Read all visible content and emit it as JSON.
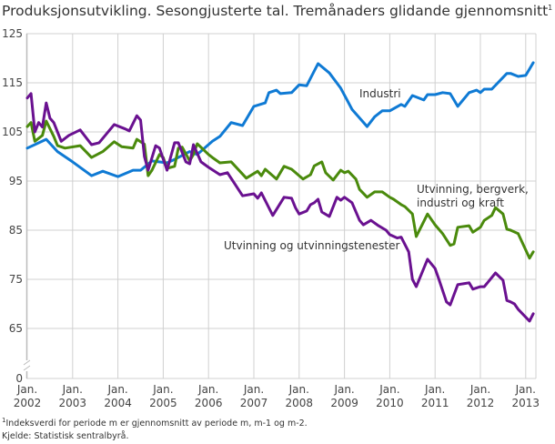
{
  "chart_data": {
    "type": "line",
    "title": "Produksjonsutvikling. Sesongjusterte tal. Tremånaders glidande gjennomsnitt",
    "title_footnote_mark": "1",
    "xlabel": "",
    "ylabel": "",
    "ylim": [
      0,
      125
    ],
    "y_axis_break": true,
    "yticks": [
      "0",
      "65",
      "75",
      "85",
      "95",
      "105",
      "115",
      "125"
    ],
    "xticks": [
      {
        "line1": "Jan.",
        "line2": "2002"
      },
      {
        "line1": "Jan.",
        "line2": "2003"
      },
      {
        "line1": "Jan.",
        "line2": "2004"
      },
      {
        "line1": "Jan.",
        "line2": "2005"
      },
      {
        "line1": "Jan.",
        "line2": "2006"
      },
      {
        "line1": "Jan.",
        "line2": "2007"
      },
      {
        "line1": "Jan.",
        "line2": "2008"
      },
      {
        "line1": "Jan.",
        "line2": "2009"
      },
      {
        "line1": "Jan.",
        "line2": "2010"
      },
      {
        "line1": "Jan.",
        "line2": "2011"
      },
      {
        "line1": "Jan.",
        "line2": "2012"
      },
      {
        "line1": "Jan.",
        "line2": "2013"
      }
    ],
    "grid": true,
    "legend": "inline labels",
    "series": [
      {
        "name": "Industri",
        "color": "#0f7ad4",
        "points": [
          [
            "2002-01",
            101.7
          ],
          [
            "2002-06",
            103.5
          ],
          [
            "2002-09",
            101.0
          ],
          [
            "2003-01",
            98.9
          ],
          [
            "2003-06",
            96.1
          ],
          [
            "2003-09",
            97.0
          ],
          [
            "2004-01",
            95.9
          ],
          [
            "2004-05",
            97.2
          ],
          [
            "2004-07",
            97.2
          ],
          [
            "2004-10",
            99.1
          ],
          [
            "2005-02",
            98.7
          ],
          [
            "2005-04",
            99.4
          ],
          [
            "2005-08",
            101.0
          ],
          [
            "2005-10",
            100.4
          ],
          [
            "2006-02",
            103.1
          ],
          [
            "2006-04",
            104.1
          ],
          [
            "2006-07",
            106.9
          ],
          [
            "2006-10",
            106.3
          ],
          [
            "2007-01",
            110.2
          ],
          [
            "2007-04",
            110.9
          ],
          [
            "2007-05",
            113.0
          ],
          [
            "2007-07",
            113.5
          ],
          [
            "2007-08",
            112.8
          ],
          [
            "2007-11",
            113.0
          ],
          [
            "2008-01",
            114.6
          ],
          [
            "2008-03",
            114.4
          ],
          [
            "2008-05",
            117.4
          ],
          [
            "2008-06",
            118.9
          ],
          [
            "2008-09",
            117.0
          ],
          [
            "2008-12",
            113.9
          ],
          [
            "2009-03",
            109.6
          ],
          [
            "2009-07",
            106.1
          ],
          [
            "2009-09",
            108.1
          ],
          [
            "2009-11",
            109.3
          ],
          [
            "2010-01",
            109.3
          ],
          [
            "2010-04",
            110.6
          ],
          [
            "2010-05",
            110.2
          ],
          [
            "2010-07",
            112.4
          ],
          [
            "2010-10",
            111.5
          ],
          [
            "2010-11",
            112.6
          ],
          [
            "2011-01",
            112.6
          ],
          [
            "2011-03",
            113.0
          ],
          [
            "2011-05",
            112.8
          ],
          [
            "2011-06",
            111.5
          ],
          [
            "2011-07",
            110.2
          ],
          [
            "2011-10",
            113.0
          ],
          [
            "2011-12",
            113.5
          ],
          [
            "2012-01",
            113.0
          ],
          [
            "2012-02",
            113.7
          ],
          [
            "2012-04",
            113.7
          ],
          [
            "2012-08",
            116.9
          ],
          [
            "2012-09",
            116.9
          ],
          [
            "2012-11",
            116.3
          ],
          [
            "2013-01",
            116.5
          ],
          [
            "2013-02",
            117.8
          ],
          [
            "2013-03",
            119.1
          ]
        ]
      },
      {
        "name": "Utvinning, bergverk, industri og kraft",
        "label_lines": [
          "Utvinning, bergverk,",
          "industri og kraft"
        ],
        "color": "#4a8a0c",
        "points": [
          [
            "2002-01",
            106.1
          ],
          [
            "2002-02",
            106.9
          ],
          [
            "2002-03",
            103.1
          ],
          [
            "2002-05",
            104.3
          ],
          [
            "2002-06",
            107.2
          ],
          [
            "2002-08",
            104.1
          ],
          [
            "2002-09",
            102.2
          ],
          [
            "2002-11",
            101.7
          ],
          [
            "2003-03",
            102.2
          ],
          [
            "2003-06",
            99.8
          ],
          [
            "2003-09",
            101.0
          ],
          [
            "2003-12",
            103.0
          ],
          [
            "2004-02",
            102.0
          ],
          [
            "2004-05",
            101.7
          ],
          [
            "2004-06",
            103.5
          ],
          [
            "2004-08",
            102.5
          ],
          [
            "2004-09",
            96.1
          ],
          [
            "2004-10",
            97.2
          ],
          [
            "2004-12",
            100.4
          ],
          [
            "2005-01",
            99.8
          ],
          [
            "2005-02",
            97.6
          ],
          [
            "2005-04",
            98.0
          ],
          [
            "2005-05",
            101.7
          ],
          [
            "2005-06",
            101.9
          ],
          [
            "2005-08",
            99.1
          ],
          [
            "2005-09",
            100.4
          ],
          [
            "2005-10",
            102.6
          ],
          [
            "2006-01",
            100.4
          ],
          [
            "2006-02",
            99.8
          ],
          [
            "2006-04",
            98.7
          ],
          [
            "2006-07",
            98.9
          ],
          [
            "2006-11",
            95.6
          ],
          [
            "2007-02",
            97.0
          ],
          [
            "2007-03",
            96.1
          ],
          [
            "2007-04",
            97.4
          ],
          [
            "2007-07",
            95.4
          ],
          [
            "2007-09",
            98.0
          ],
          [
            "2007-11",
            97.4
          ],
          [
            "2008-02",
            95.4
          ],
          [
            "2008-04",
            96.3
          ],
          [
            "2008-05",
            98.1
          ],
          [
            "2008-07",
            98.9
          ],
          [
            "2008-08",
            96.7
          ],
          [
            "2008-10",
            95.2
          ],
          [
            "2008-12",
            97.2
          ],
          [
            "2009-01",
            96.7
          ],
          [
            "2009-02",
            97.0
          ],
          [
            "2009-04",
            95.4
          ],
          [
            "2009-05",
            93.3
          ],
          [
            "2009-07",
            91.7
          ],
          [
            "2009-09",
            92.8
          ],
          [
            "2009-11",
            92.8
          ],
          [
            "2010-01",
            91.7
          ],
          [
            "2010-02",
            91.3
          ],
          [
            "2010-04",
            90.2
          ],
          [
            "2010-05",
            89.8
          ],
          [
            "2010-07",
            88.3
          ],
          [
            "2010-08",
            83.7
          ],
          [
            "2010-11",
            88.3
          ],
          [
            "2011-01",
            86.1
          ],
          [
            "2011-03",
            84.3
          ],
          [
            "2011-05",
            81.9
          ],
          [
            "2011-06",
            82.2
          ],
          [
            "2011-07",
            85.6
          ],
          [
            "2011-10",
            85.9
          ],
          [
            "2011-11",
            84.6
          ],
          [
            "2012-01",
            85.6
          ],
          [
            "2012-02",
            87.0
          ],
          [
            "2012-04",
            88.0
          ],
          [
            "2012-05",
            89.6
          ],
          [
            "2012-07",
            88.3
          ],
          [
            "2012-08",
            85.2
          ],
          [
            "2012-09",
            85.0
          ],
          [
            "2012-11",
            84.3
          ],
          [
            "2013-02",
            79.3
          ],
          [
            "2013-03",
            80.6
          ]
        ]
      },
      {
        "name": "Utvinning og utvinningstenester",
        "color": "#6a1190",
        "points": [
          [
            "2002-01",
            111.9
          ],
          [
            "2002-02",
            112.8
          ],
          [
            "2002-03",
            105.0
          ],
          [
            "2002-04",
            106.9
          ],
          [
            "2002-05",
            106.0
          ],
          [
            "2002-06",
            110.9
          ],
          [
            "2002-07",
            107.8
          ],
          [
            "2002-08",
            106.9
          ],
          [
            "2002-10",
            103.1
          ],
          [
            "2002-12",
            104.3
          ],
          [
            "2003-03",
            105.4
          ],
          [
            "2003-06",
            102.4
          ],
          [
            "2003-08",
            102.8
          ],
          [
            "2003-12",
            106.5
          ],
          [
            "2004-03",
            105.6
          ],
          [
            "2004-04",
            105.2
          ],
          [
            "2004-06",
            108.3
          ],
          [
            "2004-07",
            107.4
          ],
          [
            "2004-08",
            100.0
          ],
          [
            "2004-09",
            97.2
          ],
          [
            "2004-11",
            102.2
          ],
          [
            "2004-12",
            101.7
          ],
          [
            "2005-02",
            97.2
          ],
          [
            "2005-04",
            102.8
          ],
          [
            "2005-05",
            102.8
          ],
          [
            "2005-07",
            98.9
          ],
          [
            "2005-08",
            98.5
          ],
          [
            "2005-09",
            102.4
          ],
          [
            "2005-11",
            98.9
          ],
          [
            "2006-01",
            97.8
          ],
          [
            "2006-04",
            96.3
          ],
          [
            "2006-06",
            96.7
          ],
          [
            "2006-10",
            92.0
          ],
          [
            "2007-01",
            92.4
          ],
          [
            "2007-02",
            91.5
          ],
          [
            "2007-03",
            92.6
          ],
          [
            "2007-06",
            88.0
          ],
          [
            "2007-09",
            91.7
          ],
          [
            "2007-11",
            91.5
          ],
          [
            "2007-12",
            89.6
          ],
          [
            "2008-01",
            88.3
          ],
          [
            "2008-03",
            88.9
          ],
          [
            "2008-04",
            90.2
          ],
          [
            "2008-05",
            90.6
          ],
          [
            "2008-06",
            91.3
          ],
          [
            "2008-07",
            88.7
          ],
          [
            "2008-09",
            87.8
          ],
          [
            "2008-11",
            91.7
          ],
          [
            "2008-12",
            91.1
          ],
          [
            "2009-01",
            91.7
          ],
          [
            "2009-03",
            90.6
          ],
          [
            "2009-05",
            87.0
          ],
          [
            "2009-06",
            86.1
          ],
          [
            "2009-08",
            87.0
          ],
          [
            "2009-10",
            85.9
          ],
          [
            "2009-12",
            85.0
          ],
          [
            "2010-01",
            84.1
          ],
          [
            "2010-03",
            83.4
          ],
          [
            "2010-04",
            83.6
          ],
          [
            "2010-06",
            80.6
          ],
          [
            "2010-07",
            75.0
          ],
          [
            "2010-08",
            73.5
          ],
          [
            "2010-11",
            79.1
          ],
          [
            "2011-01",
            77.2
          ],
          [
            "2011-02",
            75.0
          ],
          [
            "2011-04",
            70.4
          ],
          [
            "2011-05",
            69.8
          ],
          [
            "2011-07",
            73.9
          ],
          [
            "2011-10",
            74.3
          ],
          [
            "2011-11",
            73.0
          ],
          [
            "2012-01",
            73.5
          ],
          [
            "2012-02",
            73.5
          ],
          [
            "2012-03",
            74.4
          ],
          [
            "2012-05",
            76.3
          ],
          [
            "2012-07",
            74.8
          ],
          [
            "2012-08",
            70.7
          ],
          [
            "2012-09",
            70.4
          ],
          [
            "2012-10",
            70.0
          ],
          [
            "2012-11",
            68.9
          ],
          [
            "2013-02",
            66.5
          ],
          [
            "2013-03",
            68.0
          ]
        ]
      }
    ]
  },
  "footnotes": {
    "mark": "1",
    "note": "Indeksverdi for periode m er gjennomsnitt av periode m, m-1 og m-2.",
    "source": "Kjelde: Statistisk sentralbyrå."
  }
}
